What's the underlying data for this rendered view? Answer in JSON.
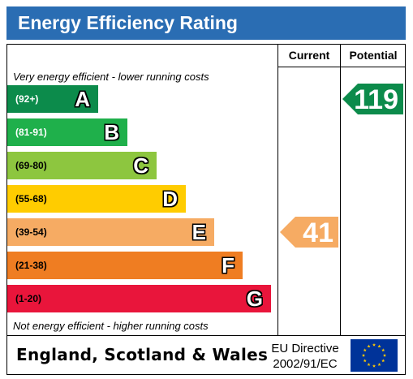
{
  "title": "Energy Efficiency Rating",
  "columns": {
    "current": "Current",
    "potential": "Potential"
  },
  "notes": {
    "top": "Very energy efficient - lower running costs",
    "bottom": "Not energy efficient - higher running costs"
  },
  "footer": {
    "region": "England, Scotland & Wales",
    "directive_line1": "EU Directive",
    "directive_line2": "2002/91/EC",
    "flag_icon": "eu-flag-icon"
  },
  "chart_data": {
    "type": "bar",
    "categories": [
      "A",
      "B",
      "C",
      "D",
      "E",
      "F",
      "G"
    ],
    "ranges": [
      "(92+)",
      "(81-91)",
      "(69-80)",
      "(55-68)",
      "(39-54)",
      "(21-38)",
      "(1-20)"
    ],
    "band_lower_bounds": [
      92,
      81,
      69,
      55,
      39,
      21,
      1
    ],
    "colors": [
      "#0c8b4b",
      "#1fb04b",
      "#8dc63f",
      "#ffcc00",
      "#f6ab63",
      "#ef7d22",
      "#e9153b"
    ],
    "series": [
      {
        "name": "Current",
        "value": 41,
        "band": "E",
        "color": "#f6ab63"
      },
      {
        "name": "Potential",
        "value": 119,
        "band": "A",
        "color": "#0c8b4b"
      }
    ]
  }
}
